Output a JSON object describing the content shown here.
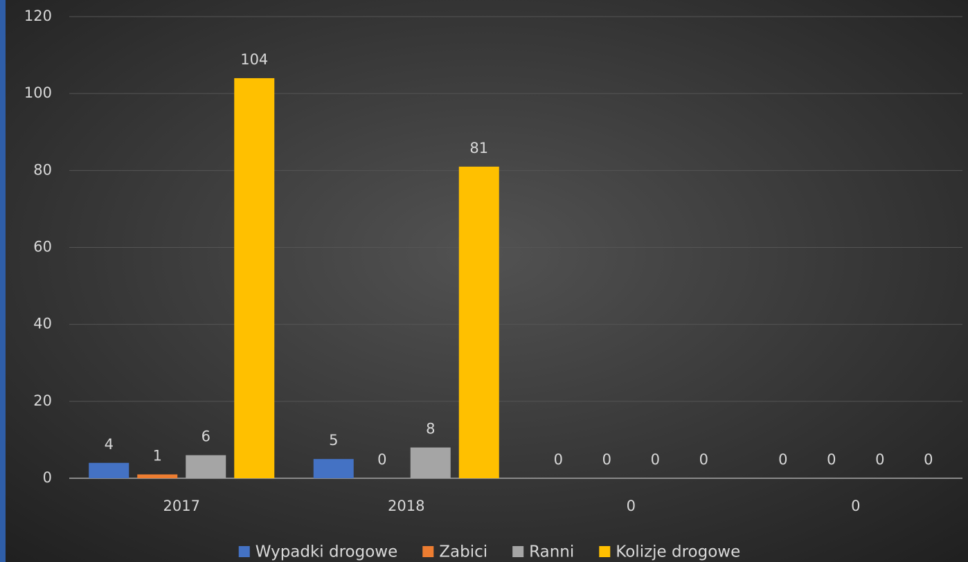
{
  "chart_data": {
    "type": "bar",
    "categories": [
      "2017",
      "2018",
      "0",
      "0"
    ],
    "series": [
      {
        "name": "Wypadki drogowe",
        "color": "#4472c4",
        "values": [
          4,
          5,
          0,
          0
        ]
      },
      {
        "name": "Zabici",
        "color": "#ed7d31",
        "values": [
          1,
          0,
          0,
          0
        ]
      },
      {
        "name": "Ranni",
        "color": "#a5a5a5",
        "values": [
          6,
          8,
          0,
          0
        ]
      },
      {
        "name": "Kolizje drogowe",
        "color": "#ffc000",
        "values": [
          104,
          81,
          0,
          0
        ]
      }
    ],
    "ylim": [
      0,
      120
    ],
    "yticks": [
      0,
      20,
      40,
      60,
      80,
      100,
      120
    ],
    "grid": true,
    "legend": "bottom"
  }
}
